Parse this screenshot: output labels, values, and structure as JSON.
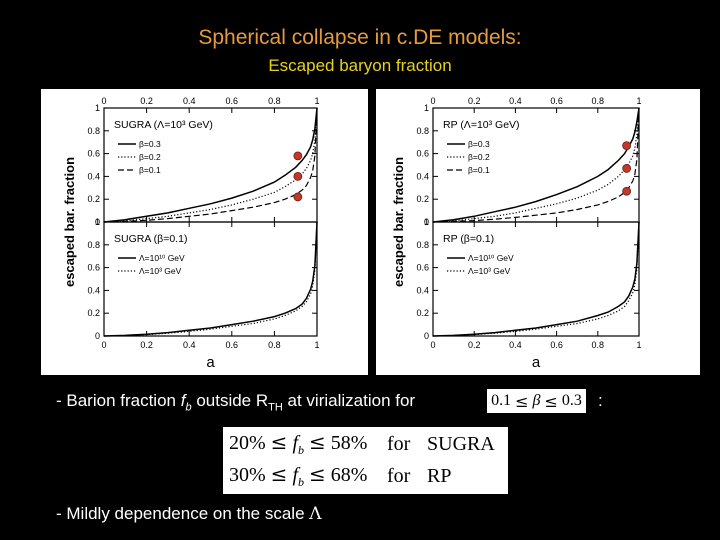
{
  "title": "Spherical collapse in c.DE models:",
  "subtitle": "Escaped baryon fraction",
  "bullets": {
    "b1_prefix": "- Barion fraction ",
    "b1_fb": "f",
    "b1_fb_sub": "b",
    "b1_mid": " outside R",
    "b1_sub": "TH",
    "b1_suffix": " at virialization for ",
    "colon": ":",
    "b2": "- Mildly dependence on the scale ",
    "b2_symbol": "Λ"
  },
  "beta_range": {
    "low": "0.1",
    "le1": "≤",
    "beta": "β",
    "le2": "≤",
    "high": "0.3"
  },
  "results": [
    {
      "low": "20%",
      "le1": "≤",
      "var": "f",
      "var_sub": "b",
      "le2": "≤",
      "high": "58%",
      "word": "for",
      "model": "SUGRA"
    },
    {
      "low": "30%",
      "le1": "≤",
      "var": "f",
      "var_sub": "b",
      "le2": "≤",
      "high": "68%",
      "word": "for",
      "model": "RP"
    }
  ],
  "chart_data": [
    {
      "type": "line",
      "ylabel": "escaped bar. fraction",
      "xlabel": "a",
      "xlim": [
        0,
        1
      ],
      "x_ticks": [
        "0",
        "0.2",
        "0.4",
        "0.6",
        "0.8",
        "1"
      ],
      "panels": [
        {
          "label": "SUGRA (Λ=10³ GeV)",
          "ylim": [
            0,
            1
          ],
          "y_ticks": [
            "0",
            "0.2",
            "0.4",
            "0.6",
            "0.8",
            "1"
          ],
          "series": [
            {
              "name": "β=0.3",
              "style": "solid",
              "x": [
                0,
                0.1,
                0.2,
                0.3,
                0.4,
                0.5,
                0.6,
                0.7,
                0.8,
                0.85,
                0.9,
                0.93,
                0.95,
                0.97,
                0.98,
                0.99,
                1.0
              ],
              "y": [
                0.0,
                0.02,
                0.05,
                0.08,
                0.12,
                0.16,
                0.21,
                0.27,
                0.35,
                0.41,
                0.48,
                0.54,
                0.59,
                0.66,
                0.72,
                0.82,
                1.0
              ]
            },
            {
              "name": "β=0.2",
              "style": "dotted",
              "x": [
                0,
                0.1,
                0.2,
                0.3,
                0.4,
                0.5,
                0.6,
                0.7,
                0.8,
                0.85,
                0.9,
                0.93,
                0.95,
                0.97,
                0.98,
                0.99,
                1.0
              ],
              "y": [
                0.0,
                0.01,
                0.03,
                0.05,
                0.08,
                0.11,
                0.15,
                0.2,
                0.26,
                0.31,
                0.37,
                0.42,
                0.47,
                0.54,
                0.6,
                0.72,
                1.0
              ]
            },
            {
              "name": "β=0.1",
              "style": "dashed",
              "x": [
                0,
                0.1,
                0.2,
                0.3,
                0.4,
                0.5,
                0.6,
                0.7,
                0.8,
                0.85,
                0.9,
                0.93,
                0.95,
                0.97,
                0.98,
                0.99,
                1.0
              ],
              "y": [
                0.0,
                0.005,
                0.015,
                0.03,
                0.05,
                0.07,
                0.1,
                0.13,
                0.17,
                0.2,
                0.24,
                0.28,
                0.32,
                0.39,
                0.45,
                0.58,
                1.0
              ]
            }
          ],
          "markers": [
            {
              "x": 0.91,
              "y": 0.58
            },
            {
              "x": 0.91,
              "y": 0.4
            },
            {
              "x": 0.91,
              "y": 0.22
            }
          ]
        },
        {
          "label": "SUGRA (β=0.1)",
          "ylim": [
            0,
            1
          ],
          "y_ticks": [
            "0",
            "0.2",
            "0.4",
            "0.6",
            "0.8",
            "1"
          ],
          "series": [
            {
              "name": "Λ=10¹⁰ GeV",
              "style": "solid",
              "x": [
                0,
                0.1,
                0.2,
                0.3,
                0.4,
                0.5,
                0.6,
                0.7,
                0.8,
                0.85,
                0.9,
                0.93,
                0.95,
                0.97,
                0.98,
                0.99,
                1.0
              ],
              "y": [
                0.0,
                0.005,
                0.015,
                0.03,
                0.05,
                0.07,
                0.1,
                0.13,
                0.17,
                0.2,
                0.24,
                0.28,
                0.33,
                0.41,
                0.48,
                0.62,
                1.0
              ]
            },
            {
              "name": "Λ=10³ GeV",
              "style": "dotted",
              "x": [
                0,
                0.1,
                0.2,
                0.3,
                0.4,
                0.5,
                0.6,
                0.7,
                0.8,
                0.85,
                0.9,
                0.93,
                0.95,
                0.97,
                0.98,
                0.99,
                1.0
              ],
              "y": [
                0.0,
                0.004,
                0.012,
                0.025,
                0.04,
                0.06,
                0.085,
                0.11,
                0.15,
                0.18,
                0.22,
                0.26,
                0.3,
                0.37,
                0.44,
                0.58,
                1.0
              ]
            }
          ]
        }
      ]
    },
    {
      "type": "line",
      "ylabel": "escaped bar. fraction",
      "xlabel": "a",
      "xlim": [
        0,
        1
      ],
      "x_ticks": [
        "0",
        "0.2",
        "0.4",
        "0.6",
        "0.8",
        "1"
      ],
      "panels": [
        {
          "label": "RP (Λ=10³ GeV)",
          "ylim": [
            0,
            1
          ],
          "y_ticks": [
            "0",
            "0.2",
            "0.4",
            "0.6",
            "0.8",
            "1"
          ],
          "series": [
            {
              "name": "β=0.3",
              "style": "solid",
              "x": [
                0,
                0.1,
                0.2,
                0.3,
                0.4,
                0.5,
                0.6,
                0.7,
                0.8,
                0.85,
                0.9,
                0.93,
                0.95,
                0.97,
                0.98,
                0.99,
                1.0
              ],
              "y": [
                0.0,
                0.02,
                0.05,
                0.09,
                0.13,
                0.18,
                0.24,
                0.31,
                0.4,
                0.46,
                0.54,
                0.6,
                0.66,
                0.73,
                0.79,
                0.88,
                1.0
              ]
            },
            {
              "name": "β=0.2",
              "style": "dotted",
              "x": [
                0,
                0.1,
                0.2,
                0.3,
                0.4,
                0.5,
                0.6,
                0.7,
                0.8,
                0.85,
                0.9,
                0.93,
                0.95,
                0.97,
                0.98,
                0.99,
                1.0
              ],
              "y": [
                0.0,
                0.01,
                0.03,
                0.05,
                0.08,
                0.12,
                0.16,
                0.21,
                0.28,
                0.33,
                0.4,
                0.46,
                0.51,
                0.58,
                0.65,
                0.77,
                1.0
              ]
            },
            {
              "name": "β=0.1",
              "style": "dashed",
              "x": [
                0,
                0.1,
                0.2,
                0.3,
                0.4,
                0.5,
                0.6,
                0.7,
                0.8,
                0.85,
                0.9,
                0.93,
                0.95,
                0.97,
                0.98,
                0.99,
                1.0
              ],
              "y": [
                0.0,
                0.005,
                0.012,
                0.025,
                0.04,
                0.06,
                0.08,
                0.11,
                0.15,
                0.18,
                0.22,
                0.26,
                0.3,
                0.36,
                0.42,
                0.55,
                1.0
              ]
            }
          ],
          "markers": [
            {
              "x": 0.94,
              "y": 0.67
            },
            {
              "x": 0.94,
              "y": 0.47
            },
            {
              "x": 0.94,
              "y": 0.27
            }
          ]
        },
        {
          "label": "RP (β=0.1)",
          "ylim": [
            0,
            1
          ],
          "y_ticks": [
            "0",
            "0.2",
            "0.4",
            "0.6",
            "0.8",
            "1"
          ],
          "series": [
            {
              "name": "Λ=10¹⁰ GeV",
              "style": "solid",
              "x": [
                0,
                0.1,
                0.2,
                0.3,
                0.4,
                0.5,
                0.6,
                0.7,
                0.8,
                0.85,
                0.9,
                0.93,
                0.95,
                0.97,
                0.98,
                0.99,
                1.0
              ],
              "y": [
                0.0,
                0.005,
                0.015,
                0.03,
                0.05,
                0.07,
                0.1,
                0.13,
                0.18,
                0.21,
                0.26,
                0.3,
                0.35,
                0.43,
                0.5,
                0.64,
                1.0
              ]
            },
            {
              "name": "Λ=10³ GeV",
              "style": "dotted",
              "x": [
                0,
                0.1,
                0.2,
                0.3,
                0.4,
                0.5,
                0.6,
                0.7,
                0.8,
                0.85,
                0.9,
                0.93,
                0.95,
                0.97,
                0.98,
                0.99,
                1.0
              ],
              "y": [
                0.0,
                0.004,
                0.012,
                0.025,
                0.04,
                0.06,
                0.085,
                0.11,
                0.15,
                0.18,
                0.22,
                0.26,
                0.31,
                0.38,
                0.45,
                0.59,
                1.0
              ]
            }
          ]
        }
      ]
    }
  ]
}
